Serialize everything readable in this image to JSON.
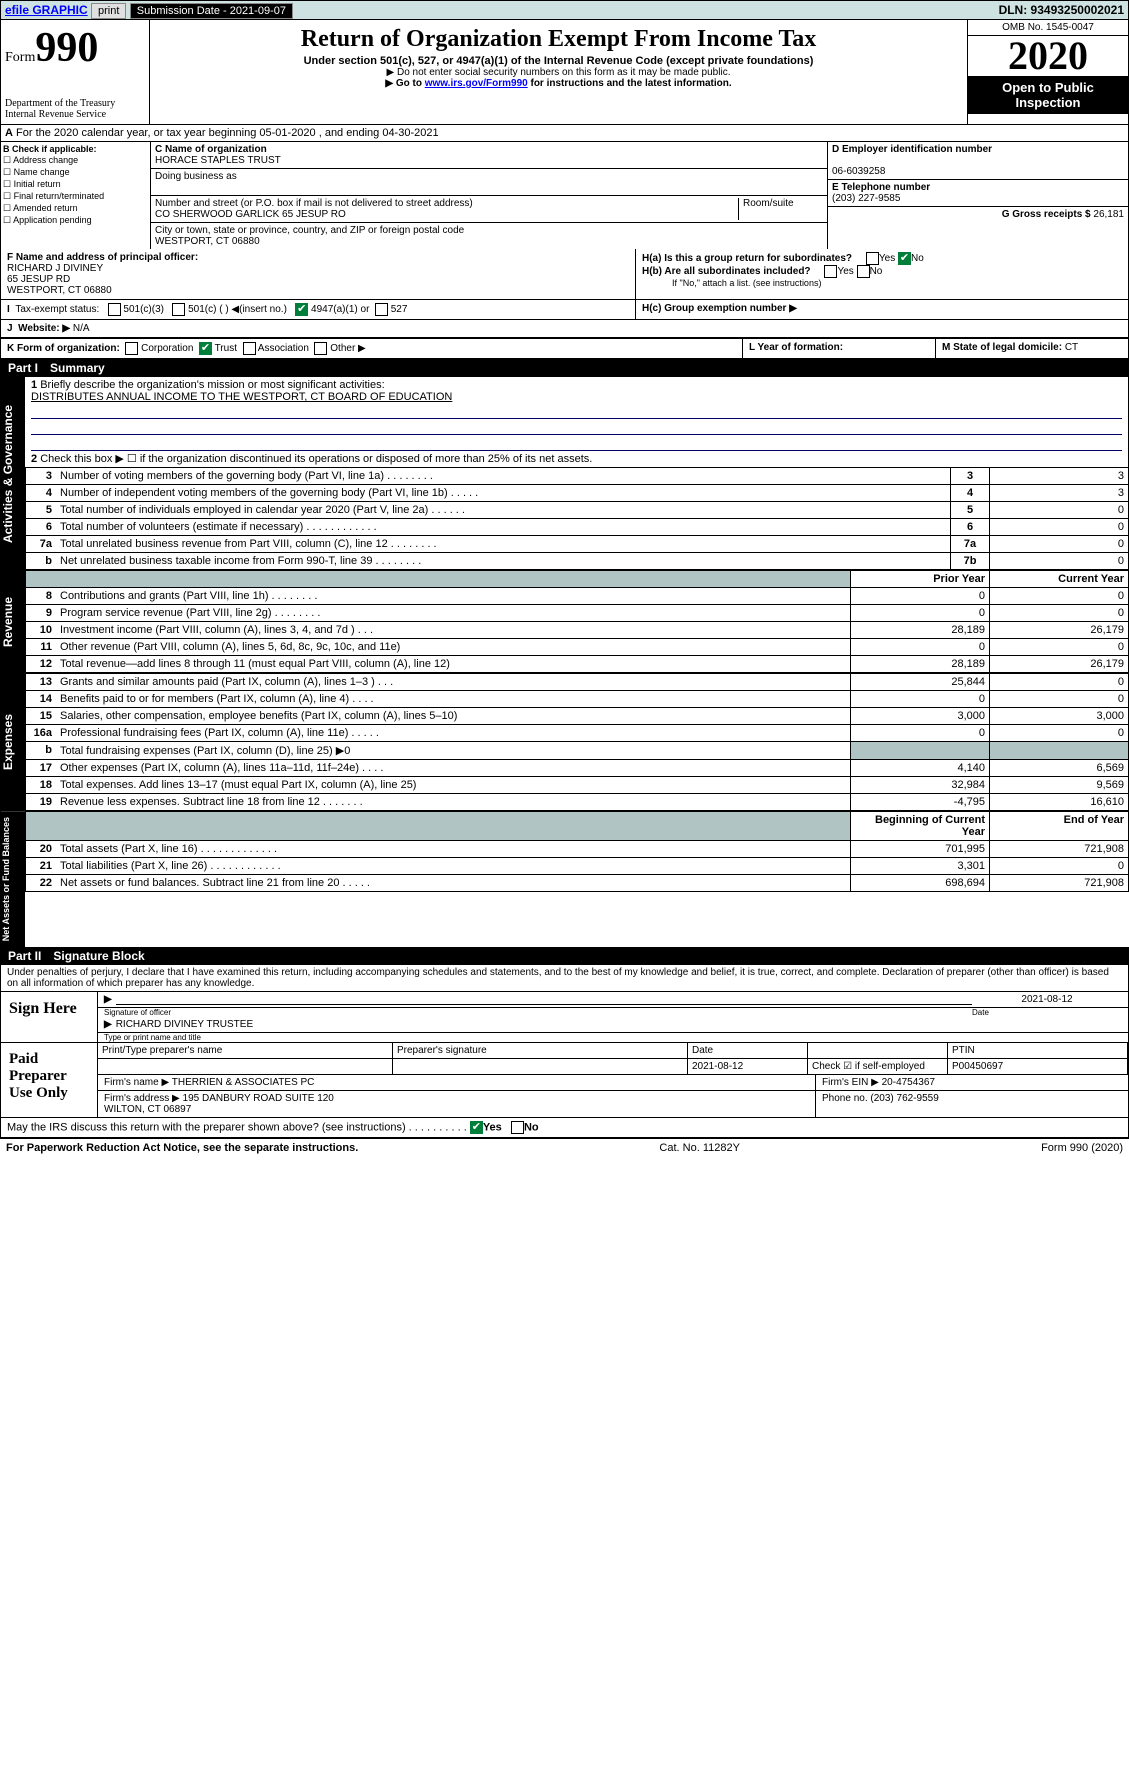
{
  "topbar": {
    "efile": "efile GRAPHIC",
    "print": "print",
    "subLabel": "Submission Date - 2021-09-07",
    "dln": "DLN: 93493250002021"
  },
  "header": {
    "form": "Form",
    "num": "990",
    "title": "Return of Organization Exempt From Income Tax",
    "sub": "Under section 501(c), 527, or 4947(a)(1) of the Internal Revenue Code (except private foundations)",
    "note1": "▶ Do not enter social security numbers on this form as it may be made public.",
    "note2a": "▶ Go to ",
    "link": "www.irs.gov/Form990",
    "note2b": " for instructions and the latest information.",
    "dept": "Department of the Treasury\nInternal Revenue Service",
    "omb": "OMB No. 1545-0047",
    "year": "2020",
    "open": "Open to Public Inspection"
  },
  "A": {
    "text": "For the 2020 calendar year, or tax year beginning 05-01-2020   , and ending 04-30-2021"
  },
  "B": {
    "hdr": "B Check if applicable:",
    "items": [
      "☐ Address change",
      "☐ Name change",
      "☐ Initial return",
      "☐ Final return/terminated",
      "☐ Amended return",
      "☐ Application pending"
    ]
  },
  "C": {
    "lbl": "C Name of organization",
    "name": "HORACE STAPLES TRUST",
    "dbaLbl": "Doing business as",
    "addrLbl": "Number and street (or P.O. box if mail is not delivered to street address)",
    "room": "Room/suite",
    "addr": "CO SHERWOOD GARLICK 65 JESUP RO",
    "cityLbl": "City or town, state or province, country, and ZIP or foreign postal code",
    "city": "WESTPORT, CT  06880"
  },
  "D": {
    "lbl": "D Employer identification number",
    "val": "06-6039258"
  },
  "E": {
    "lbl": "E Telephone number",
    "val": "(203) 227-9585"
  },
  "G": {
    "lbl": "G Gross receipts $",
    "val": "26,181"
  },
  "F": {
    "lbl": "F  Name and address of principal officer:",
    "name": "RICHARD J DIVINEY",
    "addr": "65 JESUP RD",
    "city": "WESTPORT, CT  06880"
  },
  "H": {
    "a": "H(a)  Is this a group return for subordinates?",
    "b": "H(b)  Are all subordinates included?",
    "bnote": "If \"No,\" attach a list. (see instructions)",
    "c": "H(c)  Group exemption number ▶",
    "yes": "Yes",
    "no": "No"
  },
  "I": {
    "lbl": "Tax-exempt status:",
    "opts": [
      "501(c)(3)",
      "501(c) (  ) ◀(insert no.)",
      "4947(a)(1) or",
      "527"
    ]
  },
  "J": {
    "lbl": "Website: ▶",
    "val": "N/A"
  },
  "K": {
    "lbl": "K Form of organization:",
    "opts": [
      "Corporation",
      "Trust",
      "Association",
      "Other ▶"
    ]
  },
  "L": {
    "lbl": "L Year of formation:"
  },
  "M": {
    "lbl": "M State of legal domicile:",
    "val": "CT"
  },
  "part1": {
    "num": "Part I",
    "title": "Summary"
  },
  "gov": {
    "q1": "Briefly describe the organization's mission or most significant activities:",
    "q1v": "DISTRIBUTES ANNUAL INCOME TO THE WESTPORT, CT BOARD OF EDUCATION",
    "q2": "Check this box ▶ ☐  if the organization discontinued its operations or disposed of more than 25% of its net assets.",
    "rows": [
      {
        "n": "3",
        "t": "Number of voting members of the governing body (Part VI, line 1a)   .   .   .   .   .   .   .   .",
        "b": "3",
        "v": "3"
      },
      {
        "n": "4",
        "t": "Number of independent voting members of the governing body (Part VI, line 1b)  .   .   .   .   .",
        "b": "4",
        "v": "3"
      },
      {
        "n": "5",
        "t": "Total number of individuals employed in calendar year 2020 (Part V, line 2a)  .   .   .   .   .   .",
        "b": "5",
        "v": "0"
      },
      {
        "n": "6",
        "t": "Total number of volunteers (estimate if necessary)   .   .   .   .   .   .   .   .   .   .   .   .",
        "b": "6",
        "v": "0"
      },
      {
        "n": "7a",
        "t": "Total unrelated business revenue from Part VIII, column (C), line 12  .   .   .   .   .   .   .   .",
        "b": "7a",
        "v": "0"
      },
      {
        "n": "b",
        "t": "Net unrelated business taxable income from Form 990-T, line 39   .   .   .   .   .   .   .   .",
        "b": "7b",
        "v": "0"
      }
    ]
  },
  "colhdrs": {
    "py": "Prior Year",
    "cy": "Current Year",
    "by": "Beginning of Current Year",
    "ey": "End of Year"
  },
  "rev": [
    {
      "n": "8",
      "t": "Contributions and grants (Part VIII, line 1h)  .   .   .   .   .   .   .   .",
      "p": "0",
      "c": "0"
    },
    {
      "n": "9",
      "t": "Program service revenue (Part VIII, line 2g)   .   .   .   .   .   .   .   .",
      "p": "0",
      "c": "0"
    },
    {
      "n": "10",
      "t": "Investment income (Part VIII, column (A), lines 3, 4, and 7d )   .   .   .",
      "p": "28,189",
      "c": "26,179"
    },
    {
      "n": "11",
      "t": "Other revenue (Part VIII, column (A), lines 5, 6d, 8c, 9c, 10c, and 11e)",
      "p": "0",
      "c": "0"
    },
    {
      "n": "12",
      "t": "Total revenue—add lines 8 through 11 (must equal Part VIII, column (A), line 12)",
      "p": "28,189",
      "c": "26,179"
    }
  ],
  "exp": [
    {
      "n": "13",
      "t": "Grants and similar amounts paid (Part IX, column (A), lines 1–3 )  .   .   .",
      "p": "25,844",
      "c": "0"
    },
    {
      "n": "14",
      "t": "Benefits paid to or for members (Part IX, column (A), line 4)  .   .   .   .",
      "p": "0",
      "c": "0"
    },
    {
      "n": "15",
      "t": "Salaries, other compensation, employee benefits (Part IX, column (A), lines 5–10)",
      "p": "3,000",
      "c": "3,000"
    },
    {
      "n": "16a",
      "t": "Professional fundraising fees (Part IX, column (A), line 11e)  .   .   .   .   .",
      "p": "0",
      "c": "0"
    },
    {
      "n": "b",
      "t": "Total fundraising expenses (Part IX, column (D), line 25) ▶0",
      "p": "",
      "c": "",
      "shade": true
    },
    {
      "n": "17",
      "t": "Other expenses (Part IX, column (A), lines 11a–11d, 11f–24e)  .   .   .   .",
      "p": "4,140",
      "c": "6,569"
    },
    {
      "n": "18",
      "t": "Total expenses. Add lines 13–17 (must equal Part IX, column (A), line 25)",
      "p": "32,984",
      "c": "9,569"
    },
    {
      "n": "19",
      "t": "Revenue less expenses. Subtract line 18 from line 12  .   .   .   .   .   .   .",
      "p": "-4,795",
      "c": "16,610"
    }
  ],
  "net": [
    {
      "n": "20",
      "t": "Total assets (Part X, line 16)  .   .   .   .   .   .   .   .   .   .   .   .   .",
      "p": "701,995",
      "c": "721,908"
    },
    {
      "n": "21",
      "t": "Total liabilities (Part X, line 26)   .   .   .   .   .   .   .   .   .   .   .   .",
      "p": "3,301",
      "c": "0"
    },
    {
      "n": "22",
      "t": "Net assets or fund balances. Subtract line 21 from line 20  .   .   .   .   .",
      "p": "698,694",
      "c": "721,908"
    }
  ],
  "tabs": {
    "gov": "Activities & Governance",
    "rev": "Revenue",
    "exp": "Expenses",
    "net": "Net Assets or Fund Balances"
  },
  "part2": {
    "num": "Part II",
    "title": "Signature Block",
    "decl": "Under penalties of perjury, I declare that I have examined this return, including accompanying schedules and statements, and to the best of my knowledge and belief, it is true, correct, and complete. Declaration of preparer (other than officer) is based on all information of which preparer has any knowledge."
  },
  "sign": {
    "lbl": "Sign Here",
    "sigLbl": "Signature of officer",
    "date": "2021-08-12",
    "dateLbl": "Date",
    "name": "RICHARD DIVINEY TRUSTEE",
    "nameLbl": "Type or print name and title"
  },
  "prep": {
    "lbl": "Paid Preparer Use Only",
    "h": [
      "Print/Type preparer's name",
      "Preparer's signature",
      "Date",
      "",
      "PTIN"
    ],
    "r1": [
      "",
      "",
      "2021-08-12",
      "Check ☑ if self-employed",
      "P00450697"
    ],
    "firmLbl": "Firm's name    ▶",
    "firm": "THERRIEN & ASSOCIATES PC",
    "einLbl": "Firm's EIN ▶",
    "ein": "20-4754367",
    "addrLbl": "Firm's address ▶",
    "addr": "195 DANBURY ROAD SUITE 120\nWILTON, CT  06897",
    "phLbl": "Phone no.",
    "ph": "(203) 762-9559"
  },
  "discuss": "May the IRS discuss this return with the preparer shown above? (see instructions)   .   .   .   .   .   .   .   .   .   .",
  "footer": {
    "l": "For Paperwork Reduction Act Notice, see the separate instructions.",
    "c": "Cat. No. 11282Y",
    "r": "Form 990 (2020)"
  }
}
